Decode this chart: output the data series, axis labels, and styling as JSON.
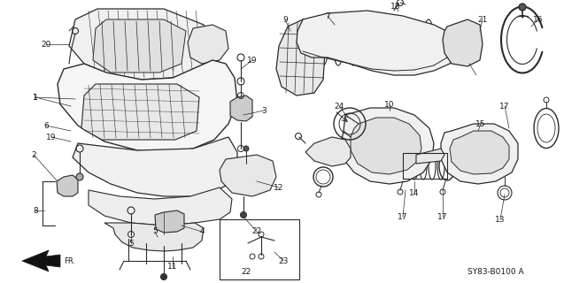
{
  "bg_color": "#ffffff",
  "diagram_code": "SY83-B0100 A",
  "line_color": "#2a2a2a",
  "text_color": "#1a1a1a",
  "font_size_label": 6.5,
  "font_size_code": 6.5,
  "figsize": [
    6.37,
    3.2
  ],
  "dpi": 100
}
